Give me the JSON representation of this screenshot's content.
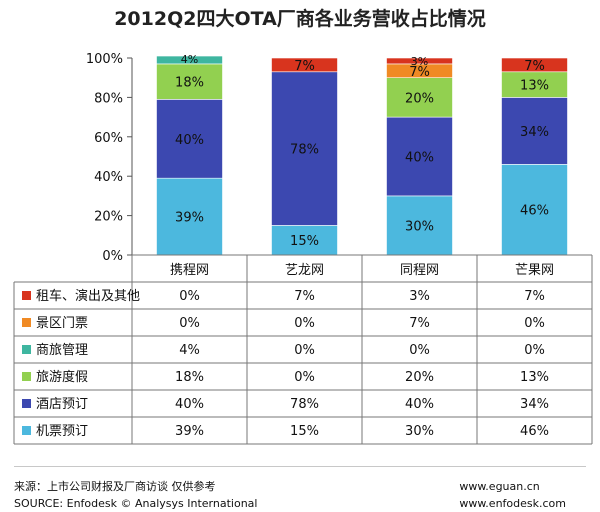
{
  "chart_data": {
    "type": "bar",
    "stacked": true,
    "title": "2012Q2四大OTA厂商各业务营收占比情况",
    "categories": [
      "携程网",
      "艺龙网",
      "同程网",
      "芒果网"
    ],
    "ylim": [
      0,
      100
    ],
    "yticks": [
      "0%",
      "20%",
      "40%",
      "60%",
      "80%",
      "100%"
    ],
    "series": [
      {
        "name": "机票预订",
        "color": "#4cb8de",
        "values": [
          39,
          15,
          30,
          46
        ],
        "labels": [
          "39%",
          "15%",
          "30%",
          "46%"
        ]
      },
      {
        "name": "酒店预订",
        "color": "#3c48b0",
        "values": [
          40,
          78,
          40,
          34
        ],
        "labels": [
          "40%",
          "78%",
          "40%",
          "34%"
        ]
      },
      {
        "name": "旅游度假",
        "color": "#92d050",
        "values": [
          18,
          0,
          20,
          13
        ],
        "labels": [
          "18%",
          "0%",
          "20%",
          "13%"
        ]
      },
      {
        "name": "商旅管理",
        "color": "#3eb6a0",
        "values": [
          4,
          0,
          0,
          0
        ],
        "labels": [
          "4%",
          "0%",
          "0%",
          "0%"
        ]
      },
      {
        "name": "景区门票",
        "color": "#f08a24",
        "values": [
          0,
          0,
          7,
          0
        ],
        "labels": [
          "0%",
          "0%",
          "7%",
          "0%"
        ]
      },
      {
        "name": "租车、演出及其他",
        "color": "#d8341e",
        "values": [
          0,
          7,
          3,
          7
        ],
        "labels": [
          "0%",
          "7%",
          "3%",
          "7%"
        ]
      }
    ],
    "table_row_order": [
      5,
      4,
      3,
      2,
      1,
      0
    ]
  },
  "footer": {
    "source_cn": "来源：上市公司财报及厂商访谈 仅供参考",
    "source_en": "SOURCE: Enfodesk © Analysys International",
    "site1": "www.eguan.cn",
    "site2": "www.enfodesk.com"
  }
}
